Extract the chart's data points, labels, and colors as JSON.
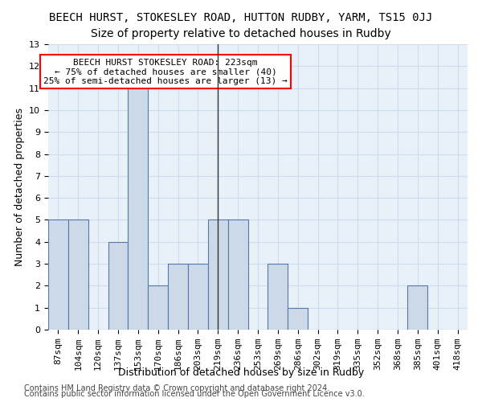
{
  "title": "BEECH HURST, STOKESLEY ROAD, HUTTON RUDBY, YARM, TS15 0JJ",
  "subtitle": "Size of property relative to detached houses in Rudby",
  "xlabel": "Distribution of detached houses by size in Rudby",
  "ylabel": "Number of detached properties",
  "footer_line1": "Contains HM Land Registry data © Crown copyright and database right 2024.",
  "footer_line2": "Contains public sector information licensed under the Open Government Licence v3.0.",
  "annotation_line1": "BEECH HURST STOKESLEY ROAD: 223sqm",
  "annotation_line2": "← 75% of detached houses are smaller (40)",
  "annotation_line3": "25% of semi-detached houses are larger (13) →",
  "bar_color": "#ccd9e8",
  "bar_edge_color": "#5577aa",
  "vline_x_index": 8,
  "vline_color": "#333333",
  "categories": [
    "87sqm",
    "104sqm",
    "120sqm",
    "137sqm",
    "153sqm",
    "170sqm",
    "186sqm",
    "203sqm",
    "219sqm",
    "236sqm",
    "253sqm",
    "269sqm",
    "286sqm",
    "302sqm",
    "319sqm",
    "335sqm",
    "352sqm",
    "368sqm",
    "385sqm",
    "401sqm",
    "418sqm"
  ],
  "values": [
    5,
    5,
    0,
    4,
    11,
    2,
    3,
    3,
    5,
    5,
    0,
    3,
    1,
    0,
    0,
    0,
    0,
    0,
    2,
    0,
    0
  ],
  "ylim": [
    0,
    13
  ],
  "yticks": [
    0,
    1,
    2,
    3,
    4,
    5,
    6,
    7,
    8,
    9,
    10,
    11,
    12,
    13
  ],
  "background_color": "#ffffff",
  "grid_color": "#ccddee",
  "title_fontsize": 10,
  "subtitle_fontsize": 10,
  "axis_label_fontsize": 9,
  "tick_fontsize": 8,
  "annotation_fontsize": 8,
  "footer_fontsize": 7
}
